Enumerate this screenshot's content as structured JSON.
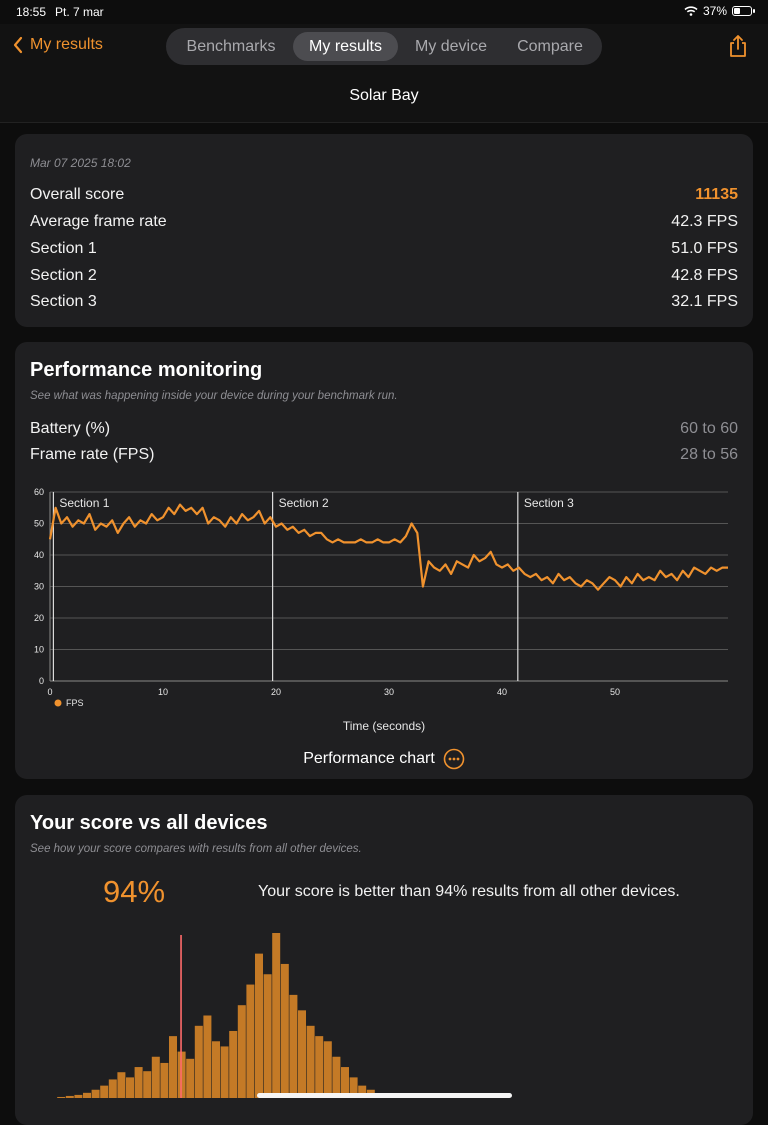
{
  "status": {
    "time": "18:55",
    "date": "Pt. 7 mar",
    "battery": "37%"
  },
  "nav": {
    "back_label": "My results",
    "tabs": [
      "Benchmarks",
      "My results",
      "My device",
      "Compare"
    ],
    "active_tab": "My results",
    "title": "Solar Bay"
  },
  "summary": {
    "timestamp": "Mar 07 2025 18:02",
    "rows": [
      {
        "label": "Overall score",
        "value": "11135"
      },
      {
        "label": "Average frame rate",
        "value": "42.3 FPS"
      },
      {
        "label": "Section 1",
        "value": "51.0 FPS"
      },
      {
        "label": "Section 2",
        "value": "42.8 FPS"
      },
      {
        "label": "Section 3",
        "value": "32.1 FPS"
      }
    ]
  },
  "monitoring": {
    "title": "Performance monitoring",
    "subtitle": "See what was happening inside your device during your benchmark run.",
    "rows": [
      {
        "label": "Battery (%)",
        "value": "60 to 60"
      },
      {
        "label": "Frame rate (FPS)",
        "value": "28 to 56"
      }
    ],
    "chart_label": "Performance chart"
  },
  "chart_data": {
    "type": "line",
    "xlabel": "Time (seconds)",
    "ylabel": "",
    "xlim": [
      0,
      60
    ],
    "ylim": [
      0,
      60
    ],
    "x_ticks": [
      0,
      10,
      20,
      30,
      40,
      50
    ],
    "y_ticks": [
      0,
      10,
      20,
      30,
      40,
      50,
      60
    ],
    "grid": true,
    "legend": "bottom-left",
    "sections": [
      {
        "label": "Section 1",
        "start": 0.3
      },
      {
        "label": "Section 2",
        "start": 19.7
      },
      {
        "label": "Section 3",
        "start": 41.4
      }
    ],
    "series": [
      {
        "name": "FPS",
        "color": "#f0922e",
        "x": [
          0,
          0.5,
          1,
          1.5,
          2,
          2.5,
          3,
          3.5,
          4,
          4.5,
          5,
          5.5,
          6,
          6.5,
          7,
          7.5,
          8,
          8.5,
          9,
          9.5,
          10,
          10.5,
          11,
          11.5,
          12,
          12.5,
          13,
          13.5,
          14,
          14.5,
          15,
          15.5,
          16,
          16.5,
          17,
          17.5,
          18,
          18.5,
          19,
          19.5,
          20,
          20.5,
          21,
          21.5,
          22,
          22.5,
          23,
          23.5,
          24,
          24.5,
          25,
          25.5,
          26,
          26.5,
          27,
          27.5,
          28,
          28.5,
          29,
          29.5,
          30,
          30.5,
          31,
          31.5,
          32,
          32.5,
          33,
          33.5,
          34,
          34.5,
          35,
          35.5,
          36,
          36.5,
          37,
          37.5,
          38,
          38.5,
          39,
          39.5,
          40,
          40.5,
          41,
          41.5,
          42,
          42.5,
          43,
          43.5,
          44,
          44.5,
          45,
          45.5,
          46,
          46.5,
          47,
          47.5,
          48,
          48.5,
          49,
          49.5,
          50,
          50.5,
          51,
          51.5,
          52,
          52.5,
          53,
          53.5,
          54,
          54.5,
          55,
          55.5,
          56,
          56.5,
          57,
          57.5,
          58,
          58.5,
          59,
          59.5,
          60
        ],
        "y": [
          45,
          55,
          50,
          52,
          49,
          51,
          50,
          53,
          48,
          50,
          49,
          51,
          47,
          50,
          52,
          49,
          51,
          50,
          53,
          51,
          52,
          55,
          53,
          56,
          54,
          55,
          53,
          55,
          50,
          52,
          51,
          49,
          52,
          50,
          53,
          51,
          52,
          54,
          50,
          52,
          49,
          50,
          48,
          49,
          47,
          48,
          46,
          47,
          47,
          45,
          44,
          45,
          44,
          44,
          44,
          45,
          44,
          44,
          45,
          44,
          44,
          45,
          44,
          46,
          50,
          47,
          30,
          38,
          36,
          35,
          37,
          34,
          38,
          37,
          36,
          40,
          38,
          39,
          41,
          37,
          36,
          37,
          35,
          36,
          34,
          33,
          34,
          32,
          33,
          31,
          34,
          32,
          33,
          31,
          30,
          32,
          31,
          29,
          31,
          33,
          32,
          30,
          33,
          31,
          34,
          32,
          33,
          32,
          35,
          33,
          34,
          32,
          35,
          33,
          36,
          35,
          34,
          36,
          35,
          36,
          36
        ]
      }
    ]
  },
  "comparison": {
    "title": "Your score vs all devices",
    "subtitle": "See how your score compares with results from all other devices.",
    "percentile": "94%",
    "text": "Your score is better than 94% results from all other devices.",
    "histogram": [
      0,
      0,
      1,
      2,
      3,
      5,
      8,
      12,
      18,
      25,
      20,
      30,
      26,
      40,
      34,
      60,
      45,
      38,
      70,
      80,
      55,
      50,
      65,
      90,
      110,
      140,
      120,
      160,
      130,
      100,
      85,
      70,
      60,
      55,
      40,
      30,
      20,
      12,
      8,
      4,
      2,
      1,
      1,
      0,
      1,
      0,
      1,
      0,
      1,
      0,
      0,
      1,
      0,
      0,
      0,
      0,
      0,
      0,
      0,
      0,
      0,
      0,
      0,
      0,
      0,
      0,
      0,
      0,
      0,
      0,
      0,
      0,
      0,
      0,
      0,
      0,
      0,
      0,
      0,
      0
    ],
    "marker_ratio": 0.205
  }
}
